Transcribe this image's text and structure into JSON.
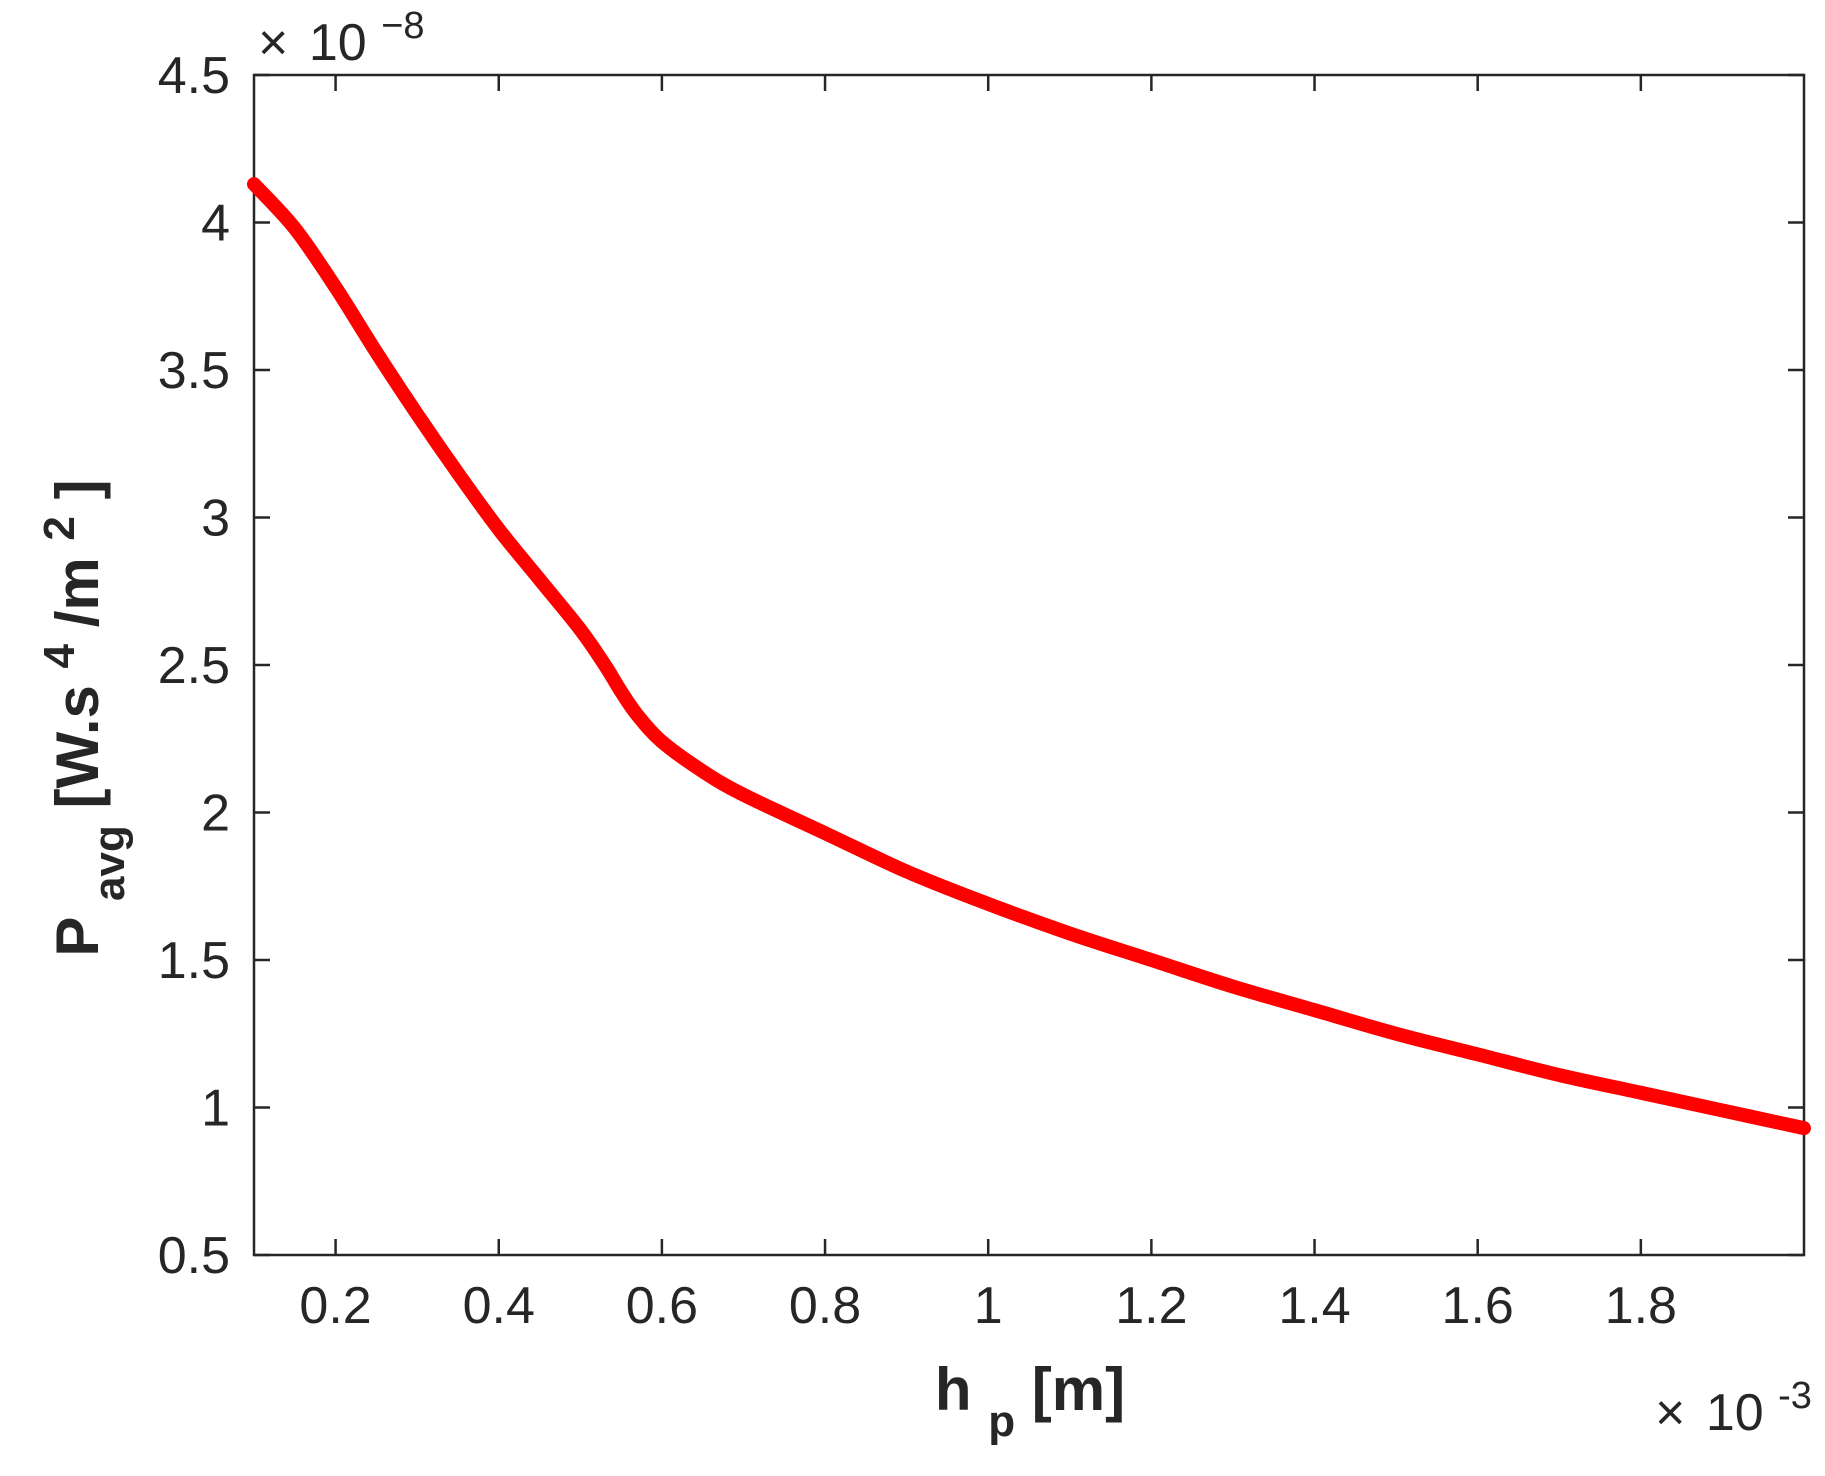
{
  "chart_data": {
    "type": "line",
    "xlabel": {
      "main": "h",
      "sub": "p",
      "unit": " [m]"
    },
    "ylabel": {
      "main": "P",
      "sub": "avg",
      "unit_pre": " [W.s",
      "sup1": "4",
      "unit_mid": "/m",
      "sup2": "2",
      "unit_post": "]"
    },
    "x_multiplier": {
      "times": "×",
      "base": "10",
      "exp": "-3"
    },
    "y_multiplier": {
      "times": "×",
      "base": "10",
      "exp": "−8"
    },
    "xlim": [
      0.1,
      2.0
    ],
    "ylim": [
      0.5,
      4.5
    ],
    "x_ticks": [
      {
        "value": 0.2,
        "label": "0.2"
      },
      {
        "value": 0.4,
        "label": "0.4"
      },
      {
        "value": 0.6,
        "label": "0.6"
      },
      {
        "value": 0.8,
        "label": "0.8"
      },
      {
        "value": 1.0,
        "label": "1"
      },
      {
        "value": 1.2,
        "label": "1.2"
      },
      {
        "value": 1.4,
        "label": "1.4"
      },
      {
        "value": 1.6,
        "label": "1.6"
      },
      {
        "value": 1.8,
        "label": "1.8"
      }
    ],
    "y_ticks": [
      {
        "value": 0.5,
        "label": "0.5"
      },
      {
        "value": 1.0,
        "label": "1"
      },
      {
        "value": 1.5,
        "label": "1.5"
      },
      {
        "value": 2.0,
        "label": "2"
      },
      {
        "value": 2.5,
        "label": "2.5"
      },
      {
        "value": 3.0,
        "label": "3"
      },
      {
        "value": 3.5,
        "label": "3.5"
      },
      {
        "value": 4.0,
        "label": "4"
      },
      {
        "value": 4.5,
        "label": "4.5"
      }
    ],
    "grid": false,
    "series": [
      {
        "color": "#ff0000",
        "x": [
          0.1,
          0.15,
          0.2,
          0.25,
          0.3,
          0.35,
          0.4,
          0.45,
          0.5,
          0.53,
          0.55,
          0.57,
          0.6,
          0.65,
          0.7,
          0.8,
          0.9,
          1.0,
          1.1,
          1.2,
          1.3,
          1.4,
          1.5,
          1.6,
          1.7,
          1.8,
          1.9,
          2.0
        ],
        "y": [
          4.13,
          3.98,
          3.78,
          3.56,
          3.35,
          3.15,
          2.96,
          2.79,
          2.62,
          2.5,
          2.41,
          2.33,
          2.24,
          2.14,
          2.06,
          1.93,
          1.8,
          1.69,
          1.59,
          1.5,
          1.41,
          1.33,
          1.25,
          1.18,
          1.11,
          1.05,
          0.99,
          0.93
        ]
      }
    ]
  }
}
